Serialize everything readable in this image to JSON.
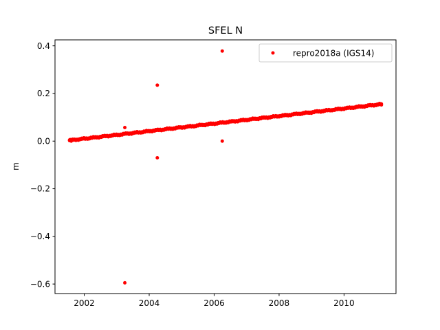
{
  "chart_data": {
    "type": "scatter",
    "title": "SFEL N",
    "xlabel": "",
    "ylabel": "m",
    "xlim": [
      2001.1,
      2011.6
    ],
    "ylim": [
      -0.64,
      0.425
    ],
    "xticks": [
      2002,
      2004,
      2006,
      2008,
      2010
    ],
    "xtick_labels": [
      "2002",
      "2004",
      "2006",
      "2008",
      "2010"
    ],
    "yticks": [
      -0.6,
      -0.4,
      -0.2,
      0.0,
      0.2,
      0.4
    ],
    "ytick_labels": [
      "−0.6",
      "−0.4",
      "−0.2",
      "0.0",
      "0.2",
      "0.4"
    ],
    "grid": false,
    "legend": {
      "position": "top-right"
    },
    "series": [
      {
        "name": "repro2018a (IGS14)",
        "color": "#ff0000",
        "marker": "circle",
        "trend": {
          "x_start": 2001.55,
          "x_end": 2011.15,
          "y_start": 0.003,
          "y_end": 0.155
        },
        "points": [
          {
            "x": 2001.55,
            "y": 0.002
          },
          {
            "x": 2001.55,
            "y": 0.005
          },
          {
            "x": 2001.6,
            "y": 0.0
          },
          {
            "x": 2001.75,
            "y": 0.004
          },
          {
            "x": 2001.85,
            "y": 0.008
          },
          {
            "x": 2001.95,
            "y": 0.01
          },
          {
            "x": 2002.05,
            "y": 0.012
          },
          {
            "x": 2003.25,
            "y": 0.057
          },
          {
            "x": 2003.25,
            "y": -0.595
          },
          {
            "x": 2004.25,
            "y": 0.235
          },
          {
            "x": 2004.25,
            "y": -0.07
          },
          {
            "x": 2006.25,
            "y": 0.378
          },
          {
            "x": 2006.25,
            "y": 0.0
          },
          {
            "x": 2011.1,
            "y": 0.155
          },
          {
            "x": 2011.15,
            "y": 0.152
          }
        ]
      }
    ]
  }
}
